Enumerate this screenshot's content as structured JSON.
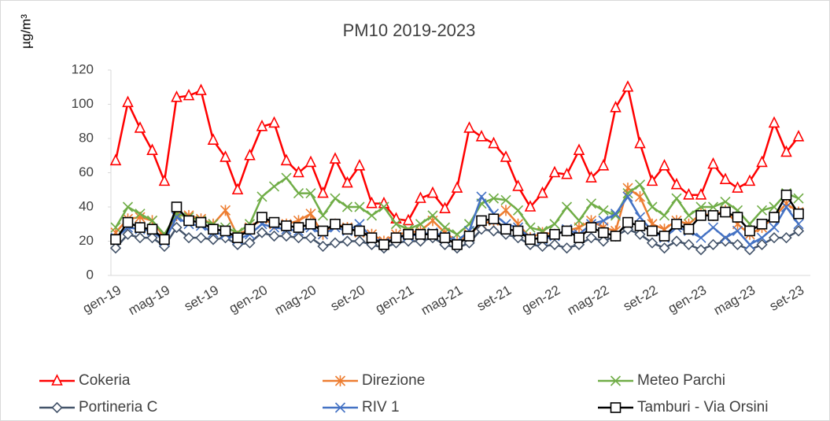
{
  "chart_data": {
    "type": "line",
    "title": "PM10 2019-2023",
    "y_label": "µg/m³",
    "categories": [
      "gen-19",
      null,
      null,
      null,
      "mag-19",
      null,
      null,
      null,
      "set-19",
      null,
      null,
      null,
      "gen-20",
      null,
      null,
      null,
      "mag-20",
      null,
      null,
      null,
      "set-20",
      null,
      null,
      null,
      "gen-21",
      null,
      null,
      null,
      "mag-21",
      null,
      null,
      null,
      "set-21",
      null,
      null,
      null,
      "gen-22",
      null,
      null,
      null,
      "mag-22",
      null,
      null,
      null,
      "set-22",
      null,
      null,
      null,
      "gen-23",
      null,
      null,
      null,
      "mag-23",
      null,
      null,
      null,
      "set-23"
    ],
    "ylim": [
      0,
      120
    ],
    "yticks": [
      0,
      20,
      40,
      60,
      80,
      100,
      120
    ],
    "grid": false,
    "legend": "bottom",
    "series": [
      {
        "name": "Cokeria",
        "color": "#ff0000",
        "marker": "triangle",
        "values": [
          67,
          101,
          86,
          73,
          55,
          104,
          105,
          108,
          79,
          69,
          50,
          70,
          87,
          89,
          67,
          60,
          66,
          48,
          68,
          54,
          64,
          42,
          42,
          33,
          32,
          45,
          48,
          39,
          51,
          86,
          81,
          77,
          69,
          52,
          40,
          48,
          60,
          59,
          73,
          57,
          64,
          98,
          110,
          77,
          55,
          64,
          53,
          47,
          47,
          65,
          56,
          51,
          55,
          66,
          89,
          72,
          81
        ]
      },
      {
        "name": "Direzione",
        "color": "#ed7d31",
        "marker": "asterisk",
        "values": [
          25,
          33,
          34,
          32,
          22,
          35,
          35,
          33,
          30,
          38,
          23,
          28,
          33,
          30,
          30,
          32,
          36,
          24,
          30,
          28,
          25,
          24,
          20,
          24,
          25,
          26,
          32,
          25,
          20,
          24,
          30,
          32,
          38,
          30,
          22,
          25,
          24,
          26,
          28,
          32,
          28,
          26,
          51,
          46,
          30,
          27,
          32,
          30,
          36,
          35,
          38,
          30,
          24,
          28,
          34,
          42,
          37
        ]
      },
      {
        "name": "Meteo Parchi",
        "color": "#70ad47",
        "marker": "x",
        "values": [
          28,
          40,
          36,
          32,
          24,
          36,
          34,
          32,
          30,
          28,
          25,
          30,
          46,
          52,
          57,
          48,
          48,
          35,
          45,
          40,
          40,
          35,
          40,
          30,
          27,
          30,
          35,
          28,
          24,
          30,
          42,
          45,
          44,
          38,
          28,
          26,
          30,
          40,
          32,
          42,
          38,
          35,
          48,
          53,
          40,
          35,
          45,
          35,
          40,
          40,
          43,
          38,
          30,
          38,
          40,
          48,
          45
        ]
      },
      {
        "name": "Portineria C",
        "color": "#44546a",
        "marker": "diamond",
        "values": [
          16,
          24,
          22,
          22,
          17,
          28,
          22,
          22,
          21,
          22,
          18,
          19,
          25,
          23,
          23,
          22,
          22,
          17,
          19,
          20,
          20,
          18,
          16,
          19,
          20,
          20,
          22,
          18,
          16,
          19,
          27,
          26,
          24,
          22,
          18,
          17,
          18,
          16,
          18,
          22,
          20,
          23,
          27,
          24,
          19,
          16,
          20,
          18,
          15,
          18,
          20,
          18,
          15,
          18,
          22,
          22,
          26
        ]
      },
      {
        "name": "RIV 1",
        "color": "#4472c4",
        "marker": "x",
        "values": [
          22,
          28,
          27,
          26,
          20,
          34,
          30,
          29,
          25,
          24,
          21,
          24,
          30,
          28,
          27,
          26,
          28,
          24,
          28,
          26,
          30,
          22,
          19,
          22,
          23,
          24,
          25,
          23,
          20,
          26,
          46,
          36,
          30,
          28,
          22,
          21,
          23,
          27,
          24,
          30,
          32,
          36,
          46,
          34,
          26,
          22,
          28,
          26,
          22,
          28,
          22,
          26,
          18,
          22,
          28,
          40,
          30
        ]
      },
      {
        "name": "Tamburi - Via Orsini",
        "color": "#000000",
        "marker": "square",
        "values": [
          21,
          31,
          28,
          27,
          21,
          40,
          32,
          31,
          27,
          26,
          22,
          27,
          34,
          31,
          29,
          28,
          30,
          26,
          30,
          27,
          26,
          22,
          18,
          22,
          24,
          24,
          24,
          22,
          18,
          23,
          32,
          33,
          27,
          26,
          21,
          22,
          24,
          26,
          22,
          28,
          25,
          23,
          31,
          29,
          26,
          23,
          30,
          27,
          35,
          35,
          37,
          34,
          26,
          30,
          34,
          47,
          36
        ]
      }
    ]
  }
}
